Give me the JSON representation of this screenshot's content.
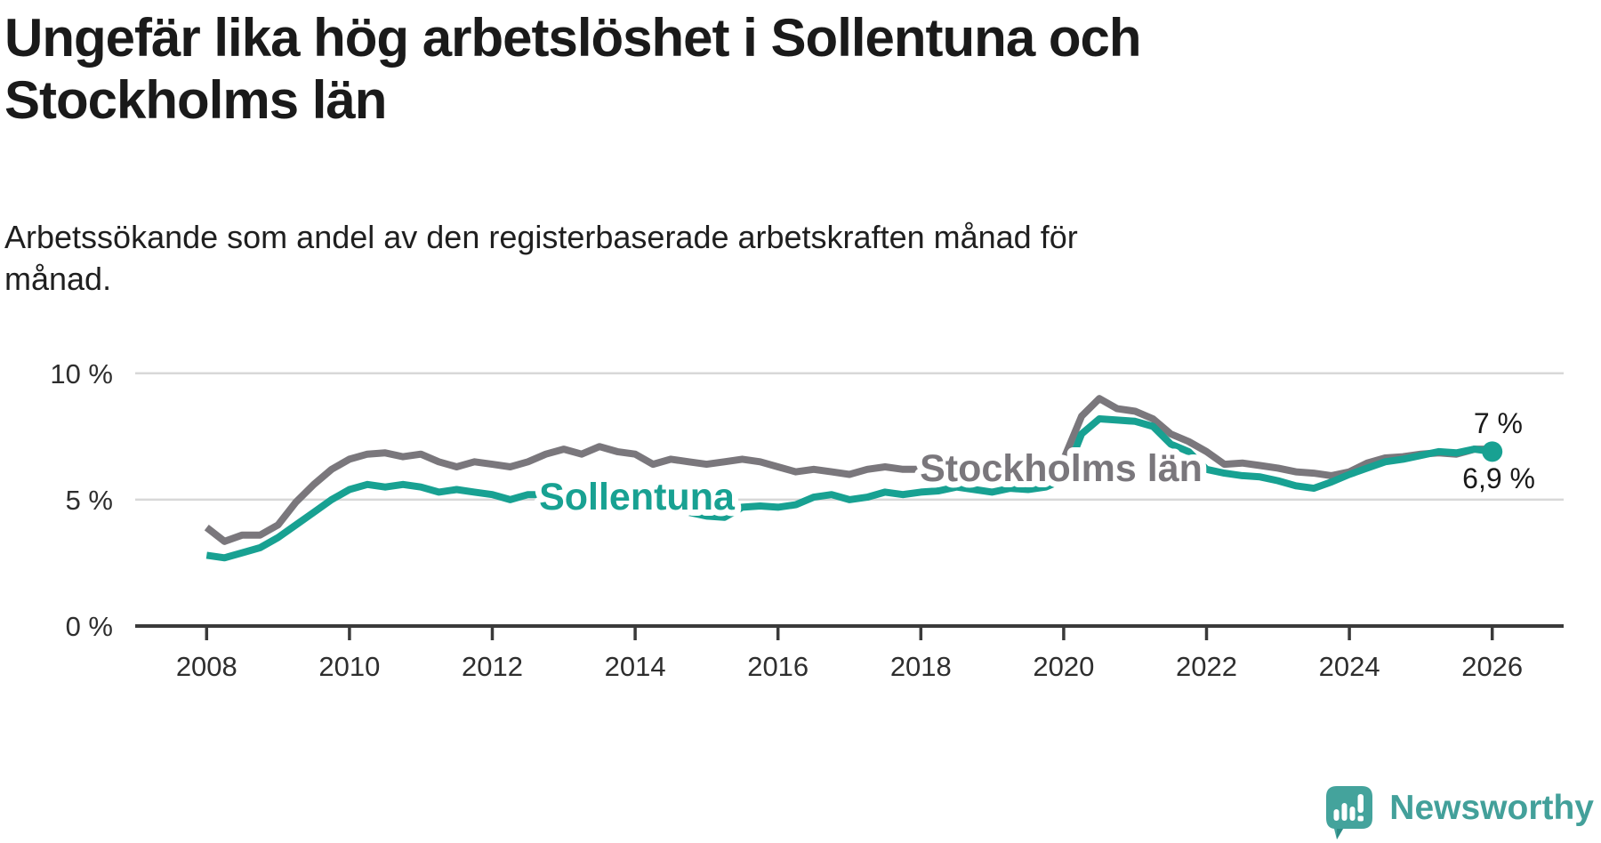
{
  "header": {
    "title_lines": [
      "Ungefär lika hög arbetslöshet i Sollentuna och",
      "Stockholms län"
    ],
    "subtitle_lines": [
      "Arbetssökande som andel av den registerbaserade arbetskraften månad för",
      "månad."
    ]
  },
  "footer": {
    "brand": "Newsworthy",
    "logo_icon": "newsworthy-speech-bubble-bar-chart-icon",
    "brand_color": "#43a09a"
  },
  "colors": {
    "sollentuna": "#18a192",
    "stockholms_lan": "#7a777c",
    "axis": "#3a3a3a",
    "grid": "#d8d8d8",
    "text_dark": "#1a1a1a"
  },
  "chart_data": {
    "type": "line",
    "title": "Ungefär lika hög arbetslöshet i Sollentuna och Stockholms län",
    "subtitle": "Arbetssökande som andel av den registerbaserade arbetskraften månad för månad.",
    "xlabel": "",
    "ylabel": "",
    "xlim": [
      2007.0,
      2027.0
    ],
    "ylim": [
      0,
      10
    ],
    "grid": "horizontal",
    "yticks": {
      "values": [
        0,
        5,
        10
      ],
      "labels": [
        "0 %",
        "5 %",
        "10 %"
      ]
    },
    "xticks": {
      "values": [
        2008,
        2010,
        2012,
        2014,
        2016,
        2018,
        2020,
        2022,
        2024,
        2026
      ],
      "labels": [
        "2008",
        "2010",
        "2012",
        "2014",
        "2016",
        "2018",
        "2020",
        "2022",
        "2024",
        "2026"
      ]
    },
    "x": [
      2008.0,
      2008.25,
      2008.5,
      2008.75,
      2009.0,
      2009.25,
      2009.5,
      2009.75,
      2010.0,
      2010.25,
      2010.5,
      2010.75,
      2011.0,
      2011.25,
      2011.5,
      2011.75,
      2012.0,
      2012.25,
      2012.5,
      2012.75,
      2013.0,
      2013.25,
      2013.5,
      2013.75,
      2014.0,
      2014.25,
      2014.5,
      2014.75,
      2015.0,
      2015.25,
      2015.5,
      2015.75,
      2016.0,
      2016.25,
      2016.5,
      2016.75,
      2017.0,
      2017.25,
      2017.5,
      2017.75,
      2018.0,
      2018.25,
      2018.5,
      2018.75,
      2019.0,
      2019.25,
      2019.5,
      2019.75,
      2020.0,
      2020.25,
      2020.5,
      2020.75,
      2021.0,
      2021.25,
      2021.5,
      2021.75,
      2022.0,
      2022.25,
      2022.5,
      2022.75,
      2023.0,
      2023.25,
      2023.5,
      2023.75,
      2024.0,
      2024.25,
      2024.5,
      2024.75,
      2025.0,
      2025.25,
      2025.5,
      2025.75,
      2026.0
    ],
    "series": [
      {
        "name": "Stockholms län",
        "color": "#7a777c",
        "end_label": "7 %",
        "end_dot": false,
        "values": [
          3.9,
          3.35,
          3.6,
          3.6,
          4.0,
          4.9,
          5.6,
          6.2,
          6.6,
          6.8,
          6.85,
          6.7,
          6.8,
          6.5,
          6.3,
          6.5,
          6.4,
          6.3,
          6.5,
          6.8,
          7.0,
          6.8,
          7.1,
          6.9,
          6.8,
          6.4,
          6.6,
          6.5,
          6.4,
          6.5,
          6.6,
          6.5,
          6.3,
          6.1,
          6.2,
          6.1,
          6.0,
          6.2,
          6.3,
          6.2,
          6.2,
          6.2,
          6.3,
          6.2,
          6.2,
          6.3,
          6.3,
          6.4,
          6.6,
          8.3,
          9.0,
          8.6,
          8.5,
          8.2,
          7.6,
          7.3,
          6.9,
          6.4,
          6.45,
          6.35,
          6.25,
          6.1,
          6.05,
          5.95,
          6.1,
          6.45,
          6.65,
          6.7,
          6.8,
          6.85,
          6.8,
          7.0,
          7.0
        ]
      },
      {
        "name": "Sollentuna",
        "color": "#18a192",
        "end_label": "6,9 %",
        "end_dot": true,
        "values": [
          2.8,
          2.7,
          2.9,
          3.1,
          3.5,
          4.0,
          4.5,
          5.0,
          5.4,
          5.6,
          5.5,
          5.6,
          5.5,
          5.3,
          5.4,
          5.3,
          5.2,
          5.0,
          5.2,
          5.2,
          5.2,
          5.3,
          5.3,
          5.2,
          5.1,
          4.9,
          4.7,
          4.5,
          4.35,
          4.3,
          4.7,
          4.75,
          4.7,
          4.8,
          5.1,
          5.2,
          5.0,
          5.1,
          5.3,
          5.2,
          5.3,
          5.35,
          5.5,
          5.4,
          5.3,
          5.45,
          5.4,
          5.5,
          5.8,
          7.6,
          8.2,
          8.15,
          8.1,
          7.9,
          7.2,
          6.9,
          6.2,
          6.05,
          5.95,
          5.9,
          5.75,
          5.55,
          5.45,
          5.7,
          6.0,
          6.25,
          6.5,
          6.6,
          6.75,
          6.9,
          6.85,
          7.0,
          6.9
        ]
      }
    ]
  }
}
